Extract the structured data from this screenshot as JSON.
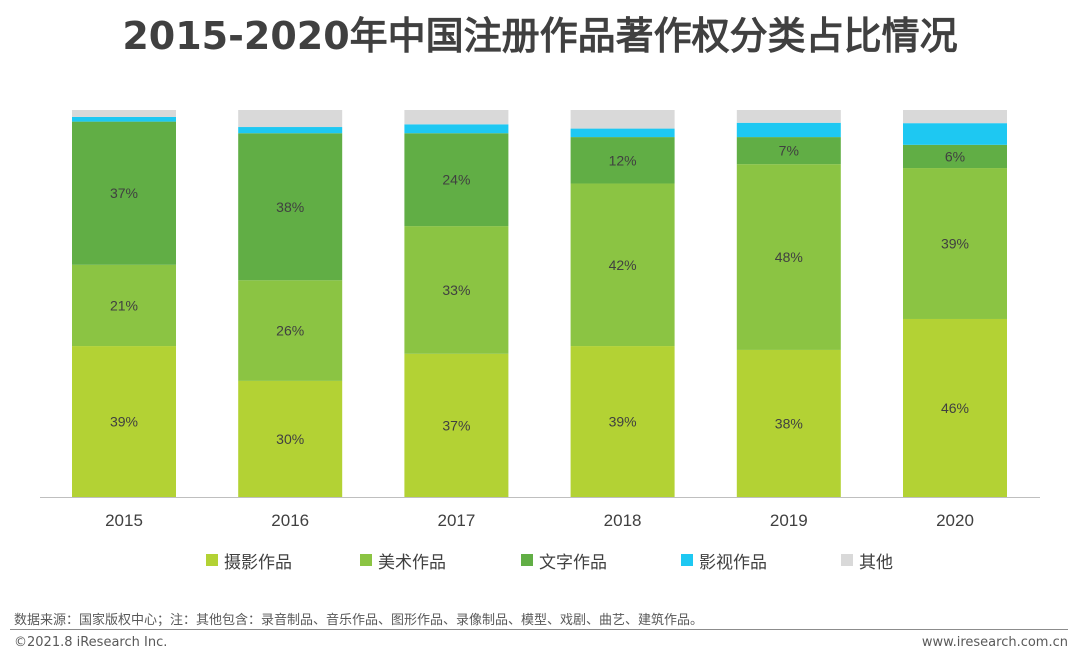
{
  "title": "2015-2020年中国注册作品著作权分类占比情况",
  "chart_data": {
    "type": "bar",
    "stacked": true,
    "normalized_percent": true,
    "categories": [
      "2015",
      "2016",
      "2017",
      "2018",
      "2019",
      "2020"
    ],
    "series": [
      {
        "name": "摄影作品",
        "color": "#b3d234",
        "values": [
          39,
          30,
          37,
          39,
          38,
          46
        ],
        "labels": [
          "39%",
          "30%",
          "37%",
          "39%",
          "38%",
          "46%"
        ]
      },
      {
        "name": "美术作品",
        "color": "#8bc443",
        "values": [
          21,
          26,
          33,
          42,
          48,
          39
        ],
        "labels": [
          "21%",
          "26%",
          "33%",
          "42%",
          "48%",
          "39%"
        ]
      },
      {
        "name": "文字作品",
        "color": "#61ae45",
        "values": [
          37,
          38,
          24,
          12,
          7,
          6
        ],
        "labels": [
          "37%",
          "38%",
          "24%",
          "12%",
          "7%",
          "6%"
        ]
      },
      {
        "name": "影视作品",
        "color": "#1ec8f2",
        "values": [
          1.2,
          1.6,
          2.3,
          2.2,
          3.7,
          5.6
        ],
        "labels": [
          "",
          "",
          "",
          "",
          "",
          ""
        ]
      },
      {
        "name": "其他",
        "color": "#d9d9d9",
        "values": [
          1.8,
          4.4,
          3.7,
          4.8,
          3.3,
          3.4
        ],
        "labels": [
          "",
          "",
          "",
          "",
          "",
          ""
        ]
      }
    ],
    "ylim": [
      0,
      100
    ],
    "grid": false,
    "legend_position": "bottom"
  },
  "footer": {
    "source": "数据来源：国家版权中心；注：其他包含：录音制品、音乐作品、图形作品、录像制品、模型、戏剧、曲艺、建筑作品。",
    "copyright": "©2021.8 iResearch Inc.",
    "website": "www.iresearch.com.cn"
  }
}
